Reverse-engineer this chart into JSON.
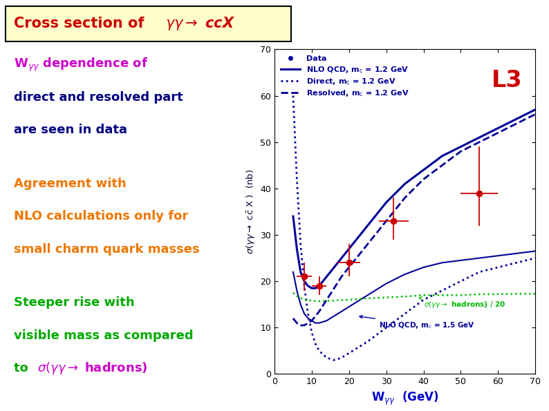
{
  "xlim": [
    0,
    70
  ],
  "ylim": [
    0,
    70
  ],
  "xticks": [
    0,
    10,
    20,
    30,
    40,
    50,
    60,
    70
  ],
  "yticks": [
    0,
    10,
    20,
    30,
    40,
    50,
    60,
    70
  ],
  "data_points": {
    "x": [
      8,
      12,
      20,
      32,
      55
    ],
    "y": [
      21,
      19,
      24,
      33,
      39
    ],
    "yerr_low": [
      3,
      2,
      3,
      4,
      7
    ],
    "yerr_high": [
      3,
      2,
      4,
      5,
      10
    ],
    "xerr": [
      2,
      2,
      3,
      4,
      5
    ],
    "color": "#cc0000"
  },
  "nlo_qcd_12": {
    "x": [
      5,
      6,
      7,
      8,
      9,
      10,
      11,
      12,
      13,
      14,
      15,
      17,
      20,
      25,
      30,
      35,
      40,
      45,
      50,
      55,
      60,
      65,
      70
    ],
    "y": [
      34,
      27,
      22,
      20,
      19,
      18.5,
      18.5,
      19,
      20,
      21,
      22,
      24,
      27,
      32,
      37,
      41,
      44,
      47,
      49,
      51,
      53,
      55,
      57
    ],
    "color": "#000099",
    "linestyle": "solid",
    "linewidth": 2.2
  },
  "direct_12": {
    "x": [
      5,
      6,
      7,
      8,
      9,
      10,
      11,
      12,
      14,
      16,
      18,
      20,
      25,
      30,
      35,
      40,
      45,
      50,
      55,
      60,
      65,
      70
    ],
    "y": [
      60,
      42,
      28,
      19,
      13,
      9,
      6.5,
      5,
      3.5,
      3,
      3.5,
      4.5,
      7,
      10,
      13,
      16,
      18,
      20,
      22,
      23,
      24,
      25
    ],
    "color": "#000099",
    "linestyle": "dotted",
    "linewidth": 2.0
  },
  "resolved_12": {
    "x": [
      5,
      6,
      7,
      8,
      9,
      10,
      11,
      12,
      14,
      16,
      18,
      20,
      25,
      30,
      35,
      40,
      45,
      50,
      55,
      60,
      65,
      70
    ],
    "y": [
      12,
      11,
      10.5,
      10.5,
      11,
      11.5,
      12.5,
      13.5,
      16,
      18.5,
      21,
      23,
      28,
      33,
      38,
      42,
      45,
      48,
      50,
      52,
      54,
      56
    ],
    "color": "#000099",
    "linestyle": "dashed",
    "linewidth": 2.0
  },
  "nlo_qcd_15": {
    "x": [
      5,
      6,
      7,
      8,
      9,
      10,
      11,
      12,
      14,
      16,
      18,
      20,
      25,
      30,
      35,
      40,
      45,
      50,
      55,
      60,
      65,
      70
    ],
    "y": [
      22,
      18,
      15,
      13,
      12,
      11.5,
      11,
      11,
      11.5,
      12.5,
      13.5,
      14.5,
      17,
      19.5,
      21.5,
      23,
      24,
      24.5,
      25,
      25.5,
      26,
      26.5
    ],
    "color": "#000099",
    "linestyle": "solid",
    "linewidth": 1.5
  },
  "hadrons_20": {
    "x": [
      5,
      6,
      8,
      10,
      12,
      15,
      20,
      25,
      30,
      35,
      40,
      45,
      50,
      55,
      60,
      65,
      70
    ],
    "y": [
      17.5,
      16.8,
      16,
      15.8,
      15.7,
      15.8,
      16,
      16.3,
      16.5,
      16.7,
      17,
      17,
      17,
      17.2,
      17.2,
      17.3,
      17.3
    ],
    "color": "#00bb00",
    "linestyle": "dotted",
    "linewidth": 1.8
  },
  "bg_color": "#ffffff",
  "title_box_color": "#ffffcc",
  "title_border_color": "#000000",
  "title_text_color": "#cc0000"
}
